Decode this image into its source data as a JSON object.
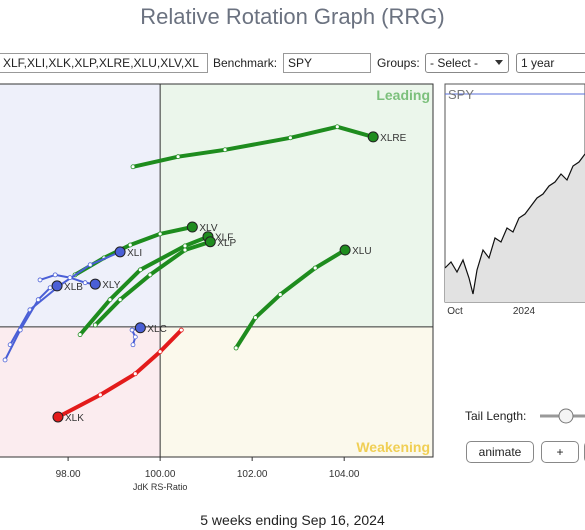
{
  "header": {
    "title": "Relative Rotation Graph (RRG)"
  },
  "controls": {
    "symbols": "XLF,XLI,XLK,XLP,XLRE,XLU,XLV,XL",
    "benchmark_label": "Benchmark:",
    "benchmark": "SPY",
    "groups_label": "Groups:",
    "groups": "- Select -",
    "period": "1 year",
    "tail_length_label": "Tail Length:",
    "buttons": [
      "animate",
      "+"
    ]
  },
  "chart_data": {
    "type": "rrg",
    "x_label": "JdK RS-Ratio",
    "xlim": [
      96.52,
      105.93
    ],
    "ylim": [
      97.17,
      105.28
    ],
    "xticks": [
      {
        "value": 98,
        "label": "98.00"
      },
      {
        "value": 100,
        "label": "100.00"
      },
      {
        "value": 102,
        "label": "102.00"
      },
      {
        "value": 104,
        "label": "104.00"
      }
    ],
    "center": 100,
    "quadrant_labels": {
      "leading": "Leading",
      "weakening": "Weakening"
    },
    "series": [
      {
        "name": "XLRE",
        "color": "#1e8c1e",
        "x": [
          99.41,
          100.39,
          101.41,
          102.83,
          103.85,
          104.63
        ],
        "y": [
          103.48,
          103.7,
          103.85,
          104.11,
          104.35,
          104.13
        ]
      },
      {
        "name": "XLV",
        "color": "#1e8c1e",
        "x": [
          98.15,
          98.78,
          99.35,
          100.0,
          100.7
        ],
        "y": [
          101.13,
          101.5,
          101.78,
          102.02,
          102.17
        ]
      },
      {
        "name": "XLF",
        "color": "#1e8c1e",
        "x": [
          98.26,
          98.91,
          99.57,
          100.54,
          101.04
        ],
        "y": [
          99.83,
          100.59,
          101.24,
          101.76,
          101.96
        ]
      },
      {
        "name": "XLP",
        "color": "#1e8c1e",
        "x": [
          98.59,
          99.13,
          99.78,
          100.54,
          101.09
        ],
        "y": [
          100.04,
          100.59,
          101.13,
          101.67,
          101.85
        ]
      },
      {
        "name": "XLU",
        "color": "#1e8c1e",
        "x": [
          101.65,
          102.07,
          102.61,
          103.37,
          104.02
        ],
        "y": [
          99.54,
          100.2,
          100.7,
          101.28,
          101.67
        ]
      },
      {
        "name": "XLK",
        "color": "#e31b1b",
        "x": [
          100.46,
          100.0,
          99.46,
          98.7,
          97.78
        ],
        "y": [
          99.93,
          99.46,
          98.98,
          98.52,
          98.04
        ]
      },
      {
        "name": "XLI",
        "color": "#4a5fd6",
        "x": [
          96.74,
          97.17,
          97.83,
          98.48,
          99.13
        ],
        "y": [
          99.61,
          100.37,
          100.91,
          101.35,
          101.63
        ]
      },
      {
        "name": "XLB",
        "color": "#4a5fd6",
        "x": [
          96.63,
          96.96,
          97.35,
          97.61,
          97.76
        ],
        "y": [
          99.28,
          99.93,
          100.59,
          100.85,
          100.89
        ]
      },
      {
        "name": "XLY",
        "color": "#4a5fd6",
        "x": [
          97.39,
          97.72,
          98.04,
          98.37,
          98.59
        ],
        "y": [
          101.02,
          101.13,
          101.07,
          100.96,
          100.93
        ]
      },
      {
        "name": "XLC",
        "color": "#4a5fd6",
        "x": [
          99.41,
          99.46,
          99.39,
          99.57
        ],
        "y": [
          99.61,
          99.78,
          99.93,
          99.98
        ]
      }
    ]
  },
  "benchmark_chart": {
    "label": "SPY",
    "x_labels": [
      "Oct",
      "2024"
    ]
  },
  "footer": "5 weeks ending Sep 16, 2024"
}
